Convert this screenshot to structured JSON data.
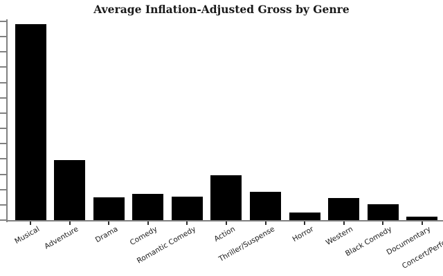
{
  "chart_data": {
    "type": "bar",
    "title": "Average Inflation-Adjusted Gross by Genre",
    "xlabel": "",
    "ylabel": "",
    "categories": [
      "Musical",
      "Adventure",
      "Drama",
      "Comedy",
      "Romantic Comedy",
      "Action",
      "Thriller/Suspense",
      "Horror",
      "Western",
      "Black Comedy",
      "Documentary",
      "Concert/Performance"
    ],
    "values": [
      284,
      87,
      33,
      38,
      34,
      65,
      41,
      11,
      32,
      23,
      5,
      null
    ],
    "values_unit": "relative bar height in pixels; y-axis value labels are cropped out of the frame so absolute units are not visible",
    "notes": "12th category bar (Concert/Performance) lies beyond the right crop edge; only part of its tick label is visible. Y axis shows 14 unlabeled tick marks.",
    "x_tick_label_rotation_deg": 30,
    "y_tick_count": 14,
    "legend": "none",
    "grid": false,
    "bar_color": "#000000",
    "axis_color": "#808080",
    "tick_color": "#2b2b2b",
    "text_color": "#1a1a1a",
    "background_color": "#ffffff"
  }
}
